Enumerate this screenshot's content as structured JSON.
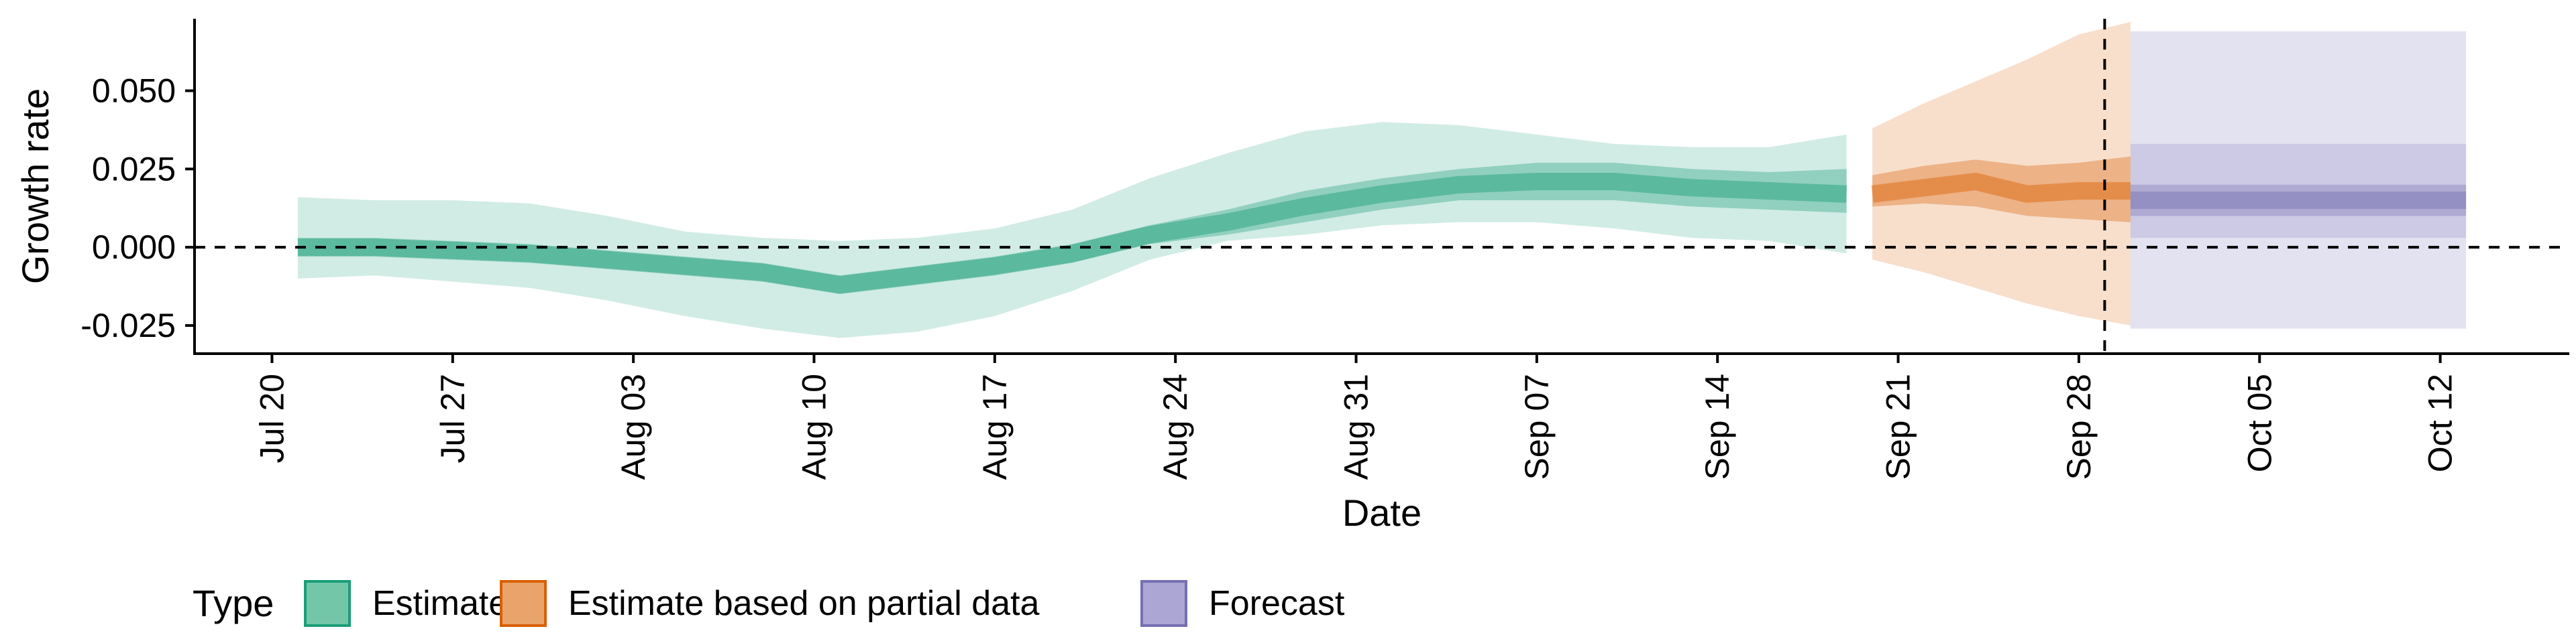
{
  "chart_data": {
    "type": "area",
    "title": "",
    "xlabel": "Date",
    "ylabel": "Growth rate",
    "x_ticks": [
      "Jul 20",
      "Jul 27",
      "Aug 03",
      "Aug 10",
      "Aug 17",
      "Aug 24",
      "Aug 31",
      "Sep 07",
      "Sep 14",
      "Sep 21",
      "Sep 28",
      "Oct 05",
      "Oct 12"
    ],
    "y_ticks": [
      "-0.025",
      "0.000",
      "0.025",
      "0.050"
    ],
    "ylim": [
      -0.034,
      0.073
    ],
    "xlim": [
      "2020-07-17",
      "2020-10-17"
    ],
    "reference_lines": {
      "horizontal_y": 0,
      "vertical_date": "2020-09-29"
    },
    "legend": {
      "title": "Type",
      "placement": "bottom",
      "entries": [
        {
          "label": "Estimate",
          "fill": "#74c6a9",
          "stroke": "#1b9e77"
        },
        {
          "label": "Estimate based on partial data",
          "fill": "#e9a36b",
          "stroke": "#d95f02"
        },
        {
          "label": "Forecast",
          "fill": "#aba6d3",
          "stroke": "#7570b3"
        }
      ]
    },
    "series": [
      {
        "name": "Estimate",
        "color": "#1b9e77",
        "dates": [
          "2020-07-21",
          "2020-07-24",
          "2020-07-27",
          "2020-07-30",
          "2020-08-02",
          "2020-08-05",
          "2020-08-08",
          "2020-08-11",
          "2020-08-14",
          "2020-08-17",
          "2020-08-20",
          "2020-08-23",
          "2020-08-26",
          "2020-08-29",
          "2020-09-01",
          "2020-09-04",
          "2020-09-07",
          "2020-09-10",
          "2020-09-13",
          "2020-09-16",
          "2020-09-19"
        ],
        "median": [
          0.0,
          0.0,
          -0.001,
          -0.002,
          -0.004,
          -0.006,
          -0.008,
          -0.012,
          -0.009,
          -0.006,
          -0.002,
          0.004,
          0.008,
          0.013,
          0.017,
          0.02,
          0.021,
          0.021,
          0.019,
          0.018,
          0.017
        ],
        "lower50": [
          -0.003,
          -0.003,
          -0.004,
          -0.005,
          -0.007,
          -0.009,
          -0.011,
          -0.015,
          -0.012,
          -0.009,
          -0.005,
          0.001,
          0.004,
          0.008,
          0.012,
          0.015,
          0.015,
          0.015,
          0.013,
          0.012,
          0.011
        ],
        "upper50": [
          0.003,
          0.003,
          0.002,
          0.001,
          -0.001,
          -0.003,
          -0.005,
          -0.009,
          -0.006,
          -0.003,
          0.001,
          0.007,
          0.012,
          0.018,
          0.022,
          0.025,
          0.027,
          0.027,
          0.025,
          0.024,
          0.025
        ],
        "lower90": [
          -0.01,
          -0.009,
          -0.011,
          -0.013,
          -0.017,
          -0.022,
          -0.026,
          -0.029,
          -0.027,
          -0.022,
          -0.014,
          -0.004,
          0.002,
          0.004,
          0.007,
          0.008,
          0.008,
          0.006,
          0.003,
          0.002,
          -0.002
        ],
        "upper90": [
          0.016,
          0.015,
          0.015,
          0.014,
          0.01,
          0.005,
          0.003,
          0.002,
          0.003,
          0.006,
          0.012,
          0.022,
          0.03,
          0.037,
          0.04,
          0.039,
          0.036,
          0.033,
          0.032,
          0.032,
          0.036
        ]
      },
      {
        "name": "Estimate based on partial data",
        "color": "#d95f02",
        "dates": [
          "2020-09-20",
          "2020-09-22",
          "2020-09-24",
          "2020-09-26",
          "2020-09-28",
          "2020-09-30"
        ],
        "median": [
          0.017,
          0.019,
          0.021,
          0.017,
          0.018,
          0.018
        ],
        "lower50": [
          0.013,
          0.014,
          0.013,
          0.01,
          0.009,
          0.008
        ],
        "upper50": [
          0.023,
          0.026,
          0.028,
          0.026,
          0.027,
          0.029
        ],
        "lower90": [
          -0.004,
          -0.008,
          -0.013,
          -0.018,
          -0.022,
          -0.025
        ],
        "upper90": [
          0.038,
          0.046,
          0.053,
          0.06,
          0.068,
          0.072
        ]
      },
      {
        "name": "Forecast",
        "color": "#7570b3",
        "dates": [
          "2020-09-30",
          "2020-10-13"
        ],
        "median": [
          0.015,
          0.015
        ],
        "lower50": [
          0.01,
          0.01
        ],
        "upper50": [
          0.02,
          0.02
        ],
        "lower90": [
          0.003,
          0.003
        ],
        "upper90": [
          0.033,
          0.033
        ],
        "lower_outer": [
          -0.026,
          -0.026
        ],
        "upper_outer": [
          0.069,
          0.069
        ]
      }
    ]
  }
}
